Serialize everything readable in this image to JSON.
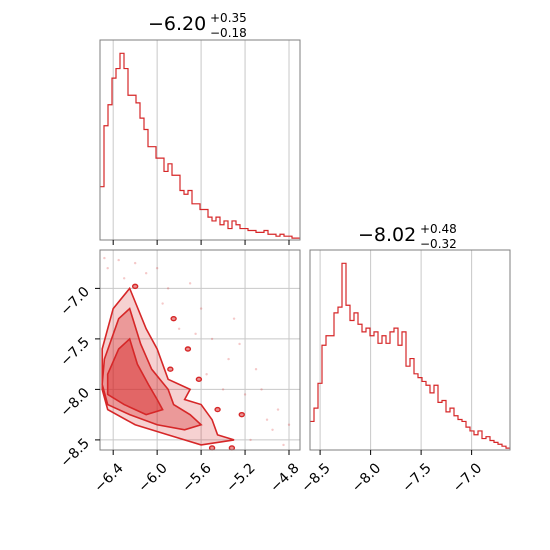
{
  "chart_data": [
    {
      "type": "histogram",
      "panel": "top-left",
      "title_value": "−6.20",
      "title_plus": "+0.35",
      "title_minus": "−0.18",
      "color": "#d62728",
      "xlim": [
        -6.52,
        -4.7
      ],
      "ylim": [
        0,
        1.05
      ],
      "grid": true,
      "bin_edges_start": -6.52,
      "bin_width": 0.0364,
      "counts": [
        0.28,
        0.6,
        0.71,
        0.85,
        0.9,
        0.98,
        0.9,
        0.76,
        0.76,
        0.72,
        0.64,
        0.58,
        0.49,
        0.49,
        0.43,
        0.43,
        0.36,
        0.4,
        0.34,
        0.34,
        0.26,
        0.24,
        0.26,
        0.19,
        0.19,
        0.16,
        0.16,
        0.12,
        0.1,
        0.12,
        0.08,
        0.1,
        0.06,
        0.1,
        0.08,
        0.06,
        0.06,
        0.05,
        0.05,
        0.04,
        0.04,
        0.05,
        0.03,
        0.03,
        0.02,
        0.03,
        0.02,
        0.02,
        0.01,
        0.01
      ]
    },
    {
      "type": "contour",
      "panel": "bottom-left",
      "color": "#d62728",
      "xlim": [
        -6.52,
        -4.7
      ],
      "ylim": [
        -8.6,
        -6.62
      ],
      "xticks": [
        -6.4,
        -6.0,
        -5.6,
        -5.2,
        -4.8
      ],
      "xtick_labels": [
        "−6.4",
        "−6.0",
        "−5.6",
        "−5.2",
        "−4.8"
      ],
      "yticks": [
        -7.0,
        -7.5,
        -8.0,
        -8.5
      ],
      "ytick_labels": [
        "−7.0",
        "−7.5",
        "−8.0",
        "−8.5"
      ],
      "grid": true,
      "regions": [
        {
          "level": "outer",
          "points": [
            [
              -6.5,
              -7.6
            ],
            [
              -6.4,
              -7.2
            ],
            [
              -6.25,
              -7.0
            ],
            [
              -6.1,
              -7.4
            ],
            [
              -6.0,
              -7.6
            ],
            [
              -5.9,
              -7.9
            ],
            [
              -5.7,
              -8.0
            ],
            [
              -5.75,
              -8.1
            ],
            [
              -5.6,
              -8.15
            ],
            [
              -5.5,
              -8.3
            ],
            [
              -5.45,
              -8.45
            ],
            [
              -5.3,
              -8.5
            ],
            [
              -5.6,
              -8.55
            ],
            [
              -5.9,
              -8.45
            ],
            [
              -6.2,
              -8.35
            ],
            [
              -6.45,
              -8.2
            ],
            [
              -6.5,
              -8.0
            ]
          ]
        },
        {
          "level": "middle",
          "points": [
            [
              -6.48,
              -7.7
            ],
            [
              -6.35,
              -7.3
            ],
            [
              -6.25,
              -7.2
            ],
            [
              -6.15,
              -7.55
            ],
            [
              -6.05,
              -7.8
            ],
            [
              -5.9,
              -8.0
            ],
            [
              -5.85,
              -8.15
            ],
            [
              -5.7,
              -8.25
            ],
            [
              -5.6,
              -8.35
            ],
            [
              -5.75,
              -8.4
            ],
            [
              -6.0,
              -8.35
            ],
            [
              -6.25,
              -8.25
            ],
            [
              -6.45,
              -8.15
            ],
            [
              -6.5,
              -7.95
            ]
          ]
        },
        {
          "level": "inner",
          "points": [
            [
              -6.45,
              -7.85
            ],
            [
              -6.35,
              -7.6
            ],
            [
              -6.25,
              -7.5
            ],
            [
              -6.18,
              -7.75
            ],
            [
              -6.08,
              -7.95
            ],
            [
              -6.0,
              -8.1
            ],
            [
              -5.95,
              -8.2
            ],
            [
              -6.1,
              -8.25
            ],
            [
              -6.3,
              -8.15
            ],
            [
              -6.45,
              -8.05
            ]
          ]
        }
      ],
      "islands": [
        [
          -5.85,
          -7.3
        ],
        [
          -5.72,
          -7.6
        ],
        [
          -5.62,
          -7.9
        ],
        [
          -5.45,
          -8.2
        ],
        [
          -5.23,
          -8.25
        ],
        [
          -5.32,
          -8.58
        ],
        [
          -5.5,
          -8.58
        ],
        [
          -6.2,
          -6.98
        ],
        [
          -5.88,
          -7.8
        ]
      ],
      "scatter_points": [
        [
          -6.45,
          -6.8
        ],
        [
          -6.2,
          -6.75
        ],
        [
          -6.3,
          -6.9
        ],
        [
          -5.9,
          -7.0
        ],
        [
          -5.6,
          -7.2
        ],
        [
          -5.5,
          -7.5
        ],
        [
          -5.3,
          -7.3
        ],
        [
          -5.1,
          -7.8
        ],
        [
          -5.0,
          -8.3
        ],
        [
          -4.9,
          -8.2
        ],
        [
          -5.2,
          -8.05
        ],
        [
          -4.95,
          -8.4
        ],
        [
          -5.7,
          -6.95
        ],
        [
          -6.0,
          -6.8
        ],
        [
          -5.8,
          -7.4
        ],
        [
          -5.35,
          -7.7
        ],
        [
          -5.15,
          -8.5
        ],
        [
          -4.85,
          -8.55
        ],
        [
          -6.48,
          -6.7
        ],
        [
          -6.1,
          -6.85
        ],
        [
          -5.55,
          -7.85
        ],
        [
          -5.05,
          -8.0
        ],
        [
          -5.4,
          -8.0
        ],
        [
          -4.8,
          -8.35
        ],
        [
          -5.25,
          -7.55
        ],
        [
          -6.35,
          -6.72
        ],
        [
          -5.95,
          -7.15
        ],
        [
          -5.65,
          -7.45
        ]
      ]
    },
    {
      "type": "histogram",
      "panel": "bottom-right",
      "title_value": "−8.02",
      "title_plus": "+0.48",
      "title_minus": "−0.32",
      "color": "#d62728",
      "xlim": [
        -8.6,
        -6.62
      ],
      "ylim": [
        0,
        1.05
      ],
      "grid": true,
      "xticks": [
        -8.5,
        -8.0,
        -7.5,
        -7.0
      ],
      "xtick_labels": [
        "−8.5",
        "−8.0",
        "−7.5",
        "−7.0"
      ],
      "bin_edges_start": -8.6,
      "bin_width": 0.0396,
      "counts": [
        0.15,
        0.22,
        0.35,
        0.55,
        0.6,
        0.6,
        0.72,
        0.75,
        0.98,
        0.76,
        0.68,
        0.72,
        0.66,
        0.62,
        0.64,
        0.6,
        0.62,
        0.56,
        0.6,
        0.56,
        0.62,
        0.64,
        0.55,
        0.62,
        0.44,
        0.48,
        0.4,
        0.38,
        0.36,
        0.34,
        0.3,
        0.34,
        0.25,
        0.26,
        0.2,
        0.22,
        0.18,
        0.16,
        0.15,
        0.12,
        0.1,
        0.08,
        0.1,
        0.06,
        0.07,
        0.05,
        0.04,
        0.03,
        0.02,
        0.01
      ]
    }
  ]
}
